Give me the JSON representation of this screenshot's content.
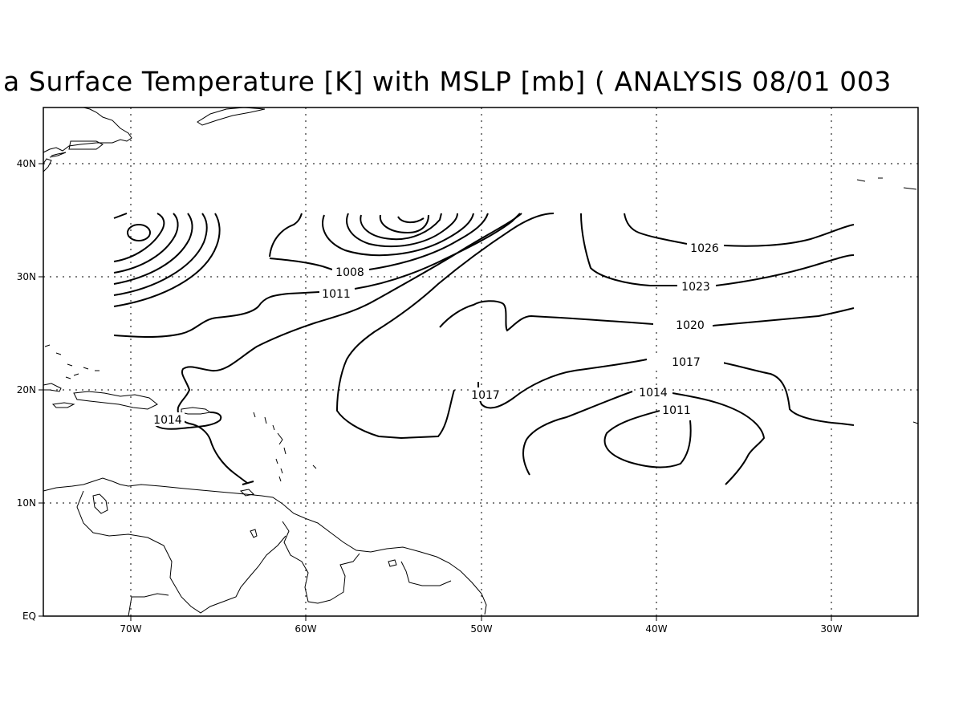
{
  "title": "a Surface Temperature [K] with MSLP [mb] ( ANALYSIS 08/01 003",
  "axes": {
    "x_ticks": [
      "70W",
      "60W",
      "50W",
      "40W",
      "30W"
    ],
    "y_ticks": [
      "EQ",
      "10N",
      "20N",
      "30N",
      "40N"
    ]
  },
  "contour_labels": [
    "1008",
    "1011",
    "1014",
    "1017",
    "1017",
    "1014",
    "1011",
    "1020",
    "1023",
    "1026"
  ],
  "chart_data": {
    "type": "contour",
    "variable": "MSLP",
    "units": "mb",
    "lon_range": [
      -75,
      -25
    ],
    "lat_range": [
      0,
      45
    ],
    "grid": true,
    "labeled_isobars": [
      1008,
      1011,
      1014,
      1017,
      1020,
      1023,
      1026
    ]
  }
}
